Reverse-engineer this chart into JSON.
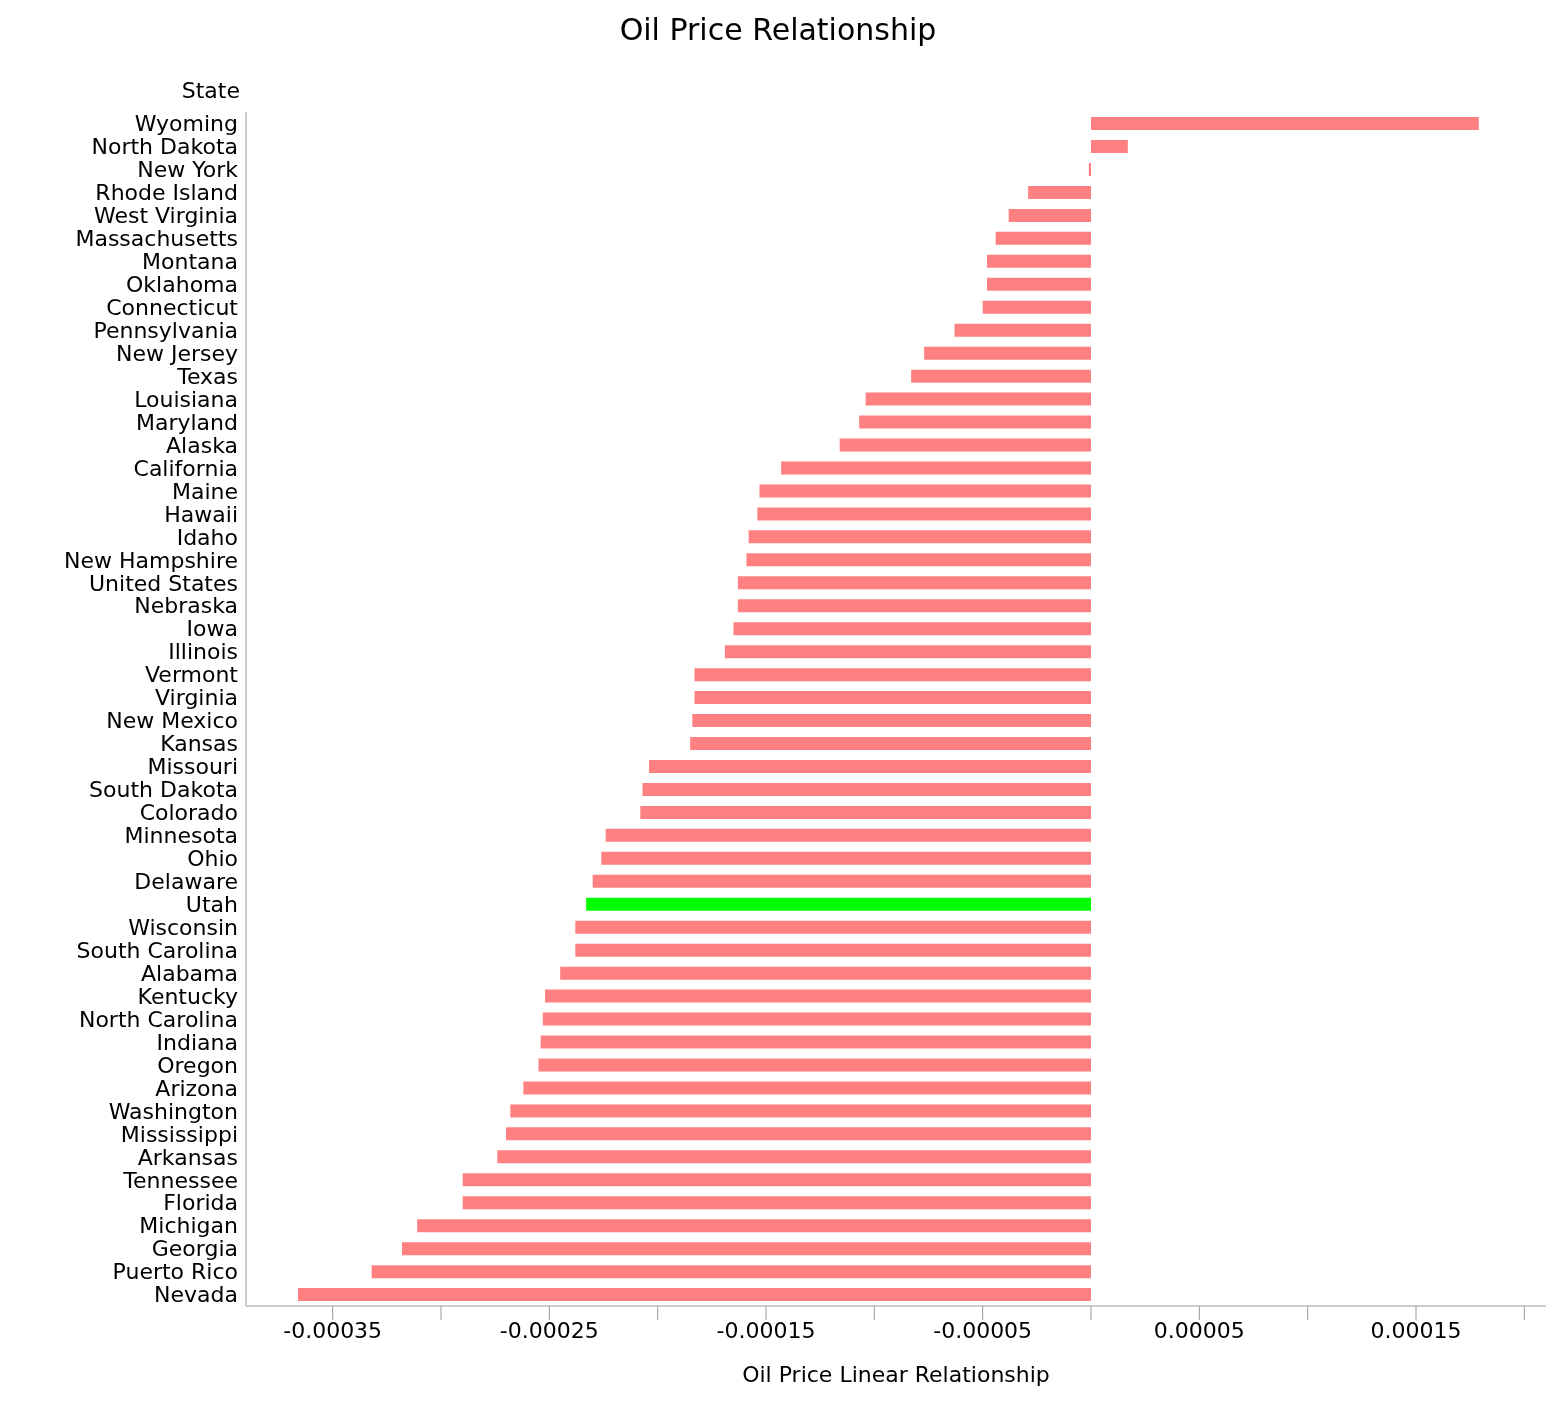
{
  "chart_data": {
    "type": "bar",
    "orientation": "horizontal",
    "title": "Oil Price Relationship",
    "ylabel": "State",
    "xlabel": "Oil Price Linear Relationship",
    "categories": [
      "Wyoming",
      "North Dakota",
      "New York",
      "Rhode Island",
      "West Virginia",
      "Massachusetts",
      "Montana",
      "Oklahoma",
      "Connecticut",
      "Pennsylvania",
      "New Jersey",
      "Texas",
      "Louisiana",
      "Maryland",
      "Alaska",
      "California",
      "Maine",
      "Hawaii",
      "Idaho",
      "New Hampshire",
      "United States",
      "Nebraska",
      "Iowa",
      "Illinois",
      "Vermont",
      "Virginia",
      "New Mexico",
      "Kansas",
      "Missouri",
      "South Dakota",
      "Colorado",
      "Minnesota",
      "Ohio",
      "Delaware",
      "Utah",
      "Wisconsin",
      "South Carolina",
      "Alabama",
      "Kentucky",
      "North Carolina",
      "Indiana",
      "Oregon",
      "Arizona",
      "Washington",
      "Mississippi",
      "Arkansas",
      "Tennessee",
      "Florida",
      "Michigan",
      "Georgia",
      "Puerto Rico",
      "Nevada"
    ],
    "values": [
      0.000179,
      1.7e-05,
      -1e-06,
      -2.9e-05,
      -3.8e-05,
      -4.4e-05,
      -4.8e-05,
      -4.8e-05,
      -5e-05,
      -6.3e-05,
      -7.7e-05,
      -8.3e-05,
      -0.000104,
      -0.000107,
      -0.000116,
      -0.000143,
      -0.000153,
      -0.000154,
      -0.000158,
      -0.000159,
      -0.000163,
      -0.000163,
      -0.000165,
      -0.000169,
      -0.000183,
      -0.000183,
      -0.000184,
      -0.000185,
      -0.000204,
      -0.000207,
      -0.000208,
      -0.000224,
      -0.000226,
      -0.00023,
      -0.000233,
      -0.000238,
      -0.000238,
      -0.000245,
      -0.000252,
      -0.000253,
      -0.000254,
      -0.000255,
      -0.000262,
      -0.000268,
      -0.00027,
      -0.000274,
      -0.00029,
      -0.00029,
      -0.000311,
      -0.000318,
      -0.000332,
      -0.000366
    ],
    "colors": [
      "#ff8080",
      "#ff8080",
      "#ff8080",
      "#ff8080",
      "#ff8080",
      "#ff8080",
      "#ff8080",
      "#ff8080",
      "#ff8080",
      "#ff8080",
      "#ff8080",
      "#ff8080",
      "#ff8080",
      "#ff8080",
      "#ff8080",
      "#ff8080",
      "#ff8080",
      "#ff8080",
      "#ff8080",
      "#ff8080",
      "#ff8080",
      "#ff8080",
      "#ff8080",
      "#ff8080",
      "#ff8080",
      "#ff8080",
      "#ff8080",
      "#ff8080",
      "#ff8080",
      "#ff8080",
      "#ff8080",
      "#ff8080",
      "#ff8080",
      "#ff8080",
      "#00ff00",
      "#ff8080",
      "#ff8080",
      "#ff8080",
      "#ff8080",
      "#ff8080",
      "#ff8080",
      "#ff8080",
      "#ff8080",
      "#ff8080",
      "#ff8080",
      "#ff8080",
      "#ff8080",
      "#ff8080",
      "#ff8080",
      "#ff8080",
      "#ff8080",
      "#ff8080"
    ],
    "xlim": [
      -0.00039,
      0.00021
    ],
    "xticks": [
      {
        "value": -0.00035,
        "label": "-0.00035"
      },
      {
        "value": -0.0003,
        "label": null
      },
      {
        "value": -0.00025,
        "label": "-0.00025"
      },
      {
        "value": -0.0002,
        "label": null
      },
      {
        "value": -0.00015,
        "label": "-0.00015"
      },
      {
        "value": -0.0001,
        "label": null
      },
      {
        "value": -5e-05,
        "label": "-0.00005"
      },
      {
        "value": 0,
        "label": null
      },
      {
        "value": 5e-05,
        "label": "0.00005"
      },
      {
        "value": 0.0001,
        "label": null
      },
      {
        "value": 0.00015,
        "label": "0.00015"
      },
      {
        "value": 0.0002,
        "label": null
      }
    ],
    "grid": false,
    "legend": false
  }
}
